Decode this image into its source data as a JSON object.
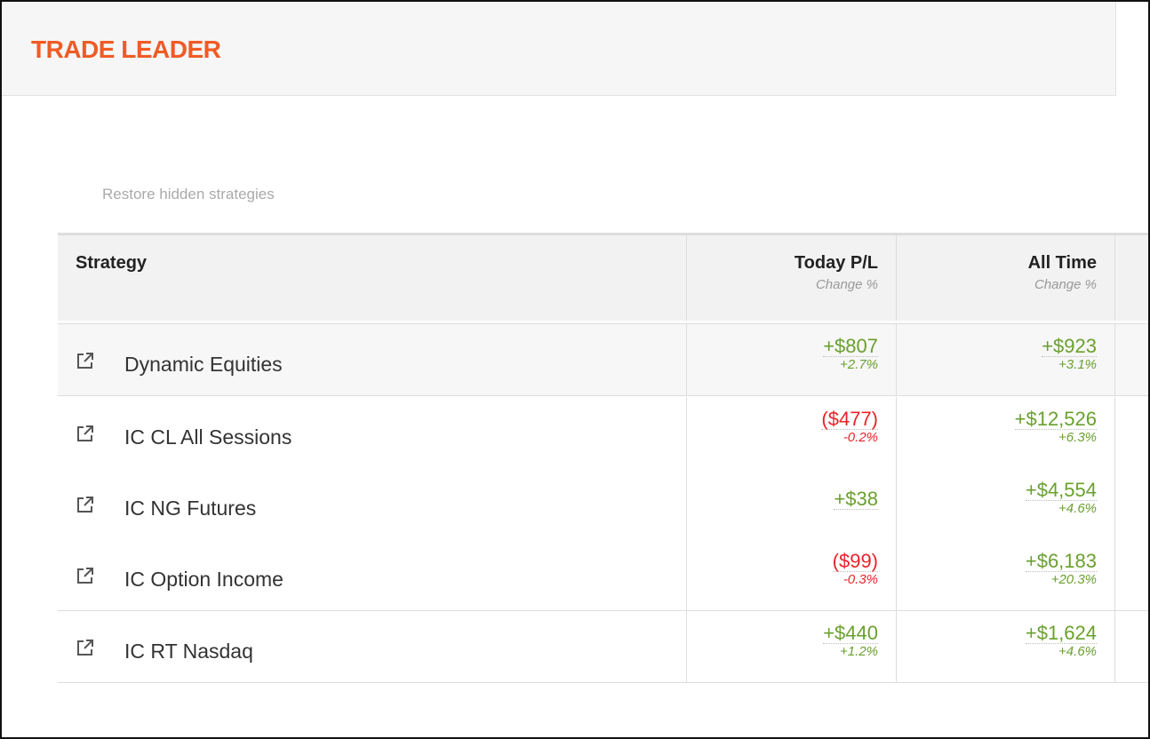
{
  "header": {
    "title": "TRADE LEADER"
  },
  "restore_link": "Restore hidden strategies",
  "table": {
    "columns": [
      {
        "title": "Strategy"
      },
      {
        "title": "Today P/L",
        "subtitle": "Change %"
      },
      {
        "title": "All Time",
        "subtitle": "Change %"
      }
    ],
    "rows": [
      {
        "strategy": "Dynamic Equities",
        "today": "+$807",
        "today_pct": "+2.7%",
        "all_time": "+$923",
        "all_time_pct": "+3.1%"
      },
      {
        "strategy": "IC CL All Sessions",
        "today": "($477)",
        "today_pct": "-0.2%",
        "all_time": "+$12,526",
        "all_time_pct": "+6.3%"
      },
      {
        "strategy": "IC NG Futures",
        "today": "+$38",
        "today_pct": null,
        "all_time": "+$4,554",
        "all_time_pct": "+4.6%"
      },
      {
        "strategy": "IC Option Income",
        "today": "($99)",
        "today_pct": "-0.3%",
        "all_time": "+$6,183",
        "all_time_pct": "+20.3%"
      },
      {
        "strategy": "IC RT Nasdaq",
        "today": "+$440",
        "today_pct": "+1.2%",
        "all_time": "+$1,624",
        "all_time_pct": "+4.6%"
      }
    ]
  }
}
